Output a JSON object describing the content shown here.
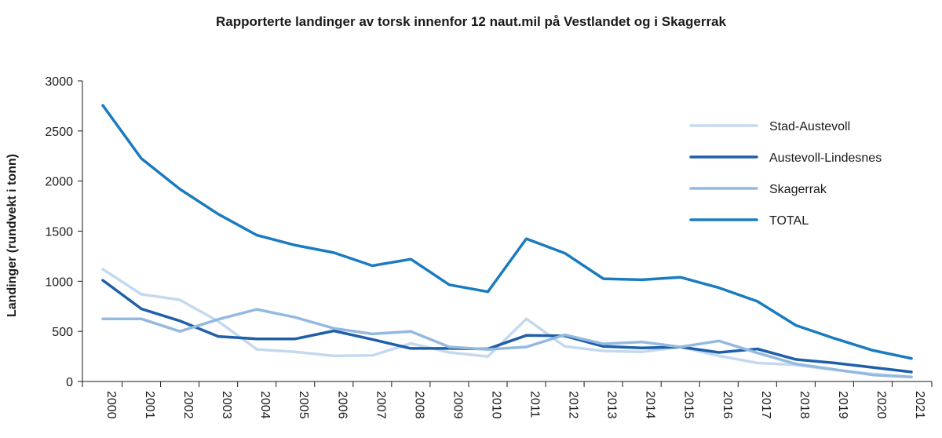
{
  "chart_data": {
    "type": "line",
    "title": "Rapporterte landinger av torsk innenfor 12 naut.mil på Vestlandet og i Skagerrak",
    "xlabel": "",
    "ylabel": "Landinger (rundvekt i tonn)",
    "ylim": [
      0,
      3000
    ],
    "yticks": [
      "0",
      "500",
      "1000",
      "1500",
      "2000",
      "2500",
      "3000"
    ],
    "categories": [
      "2000",
      "2001",
      "2002",
      "2003",
      "2004",
      "2005",
      "2006",
      "2007",
      "2008",
      "2009",
      "2010",
      "2011",
      "2012",
      "2013",
      "2014",
      "2015",
      "2016",
      "2017",
      "2018",
      "2019",
      "2020",
      "2021"
    ],
    "legend_position": "top-right",
    "grid": false,
    "series": [
      {
        "name": "Stad-Austevoll",
        "color": "#c5d9ee",
        "values": [
          1120,
          870,
          815,
          600,
          320,
          295,
          255,
          260,
          380,
          290,
          250,
          625,
          350,
          305,
          295,
          345,
          255,
          185,
          165,
          115,
          75,
          45
        ]
      },
      {
        "name": "Austevoll-Lindesnes",
        "color": "#1f5fa8",
        "values": [
          1010,
          725,
          605,
          450,
          425,
          425,
          505,
          420,
          330,
          330,
          325,
          460,
          455,
          350,
          335,
          345,
          290,
          325,
          220,
          185,
          140,
          95
        ]
      },
      {
        "name": "Skagerrak",
        "color": "#93b9e0",
        "values": [
          625,
          625,
          500,
          620,
          720,
          640,
          530,
          475,
          500,
          345,
          320,
          345,
          465,
          375,
          395,
          345,
          405,
          285,
          175,
          120,
          65,
          45
        ]
      },
      {
        "name": "TOTAL",
        "color": "#1a7bbf",
        "values": [
          2755,
          2225,
          1920,
          1670,
          1460,
          1360,
          1285,
          1155,
          1220,
          965,
          895,
          1425,
          1280,
          1025,
          1015,
          1040,
          935,
          800,
          560,
          430,
          310,
          230
        ]
      }
    ]
  }
}
